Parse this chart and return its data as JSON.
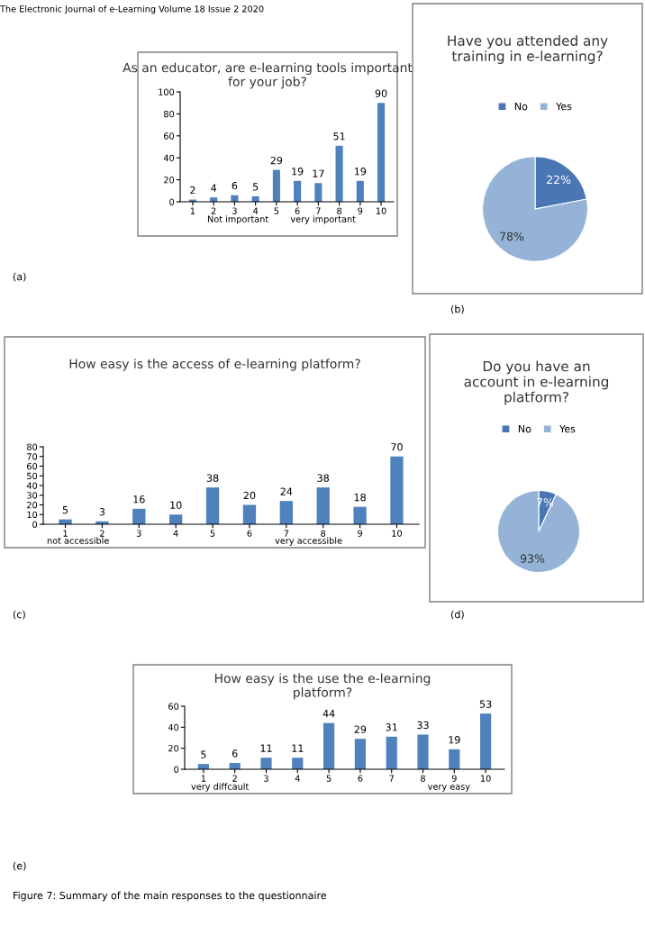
{
  "chart_data": [
    {
      "type": "bar",
      "title": "As an educator, are e-learning tools important\nfor your job?",
      "categories": [
        "1",
        "2",
        "3",
        "4",
        "5",
        "6",
        "7",
        "8",
        "9",
        "10"
      ],
      "values": [
        2,
        4,
        6,
        5,
        29,
        19,
        17,
        51,
        19,
        90
      ],
      "color": "#4f81bd",
      "ylim": [
        0,
        100
      ],
      "yticks": [
        0,
        20,
        40,
        60,
        80,
        100
      ],
      "data_labels": true,
      "grid": false,
      "annotations": [
        "Not important",
        "very important",
        "(a)",
        "The Electronic Journal of e-Learning Volume 18 Issue 2 2020"
      ]
    },
    {
      "type": "pie",
      "title": "Have you attended any\ntraining in e-learning?",
      "categories": [
        "No",
        "Yes"
      ],
      "values": [
        22,
        78
      ],
      "colors": [
        "#4a76b4",
        "#95b3d7"
      ],
      "value_labels": [
        "22%",
        "78%"
      ],
      "legend": "top",
      "annotations": [
        "(b)"
      ]
    },
    {
      "type": "bar",
      "title": "How easy is the access of e-learning platform?",
      "categories": [
        "1",
        "2",
        "3",
        "4",
        "5",
        "6",
        "7",
        "8",
        "9",
        "10"
      ],
      "values": [
        5,
        3,
        16,
        10,
        38,
        20,
        24,
        38,
        18,
        70
      ],
      "color": "#4f81bd",
      "ylim": [
        0,
        80
      ],
      "yticks": [
        0,
        10,
        20,
        30,
        40,
        50,
        60,
        70,
        80
      ],
      "data_labels": true,
      "grid": false,
      "annotations": [
        "not accessible",
        "very accessible",
        "(c)"
      ]
    },
    {
      "type": "pie",
      "title": "Do you have an\naccount in e-learning\nplatform?",
      "categories": [
        "No",
        "Yes"
      ],
      "values": [
        7,
        93
      ],
      "colors": [
        "#4a76b4",
        "#95b3d7"
      ],
      "value_labels": [
        "7%",
        "93%"
      ],
      "legend": "top",
      "annotations": [
        "(d)"
      ]
    },
    {
      "type": "bar",
      "title": "How easy is the use the e-learning\nplatform?",
      "categories": [
        "1",
        "2",
        "3",
        "4",
        "5",
        "6",
        "7",
        "8",
        "9",
        "10"
      ],
      "values": [
        5,
        6,
        11,
        11,
        44,
        29,
        31,
        33,
        19,
        53
      ],
      "color": "#4f81bd",
      "ylim": [
        0,
        60
      ],
      "yticks": [
        0,
        20,
        40,
        60
      ],
      "data_labels": true,
      "grid": false,
      "annotations": [
        "very diffcault",
        "very easy",
        "(e)",
        "Figure 7: Summary of the main responses to the questionnaire"
      ]
    }
  ]
}
